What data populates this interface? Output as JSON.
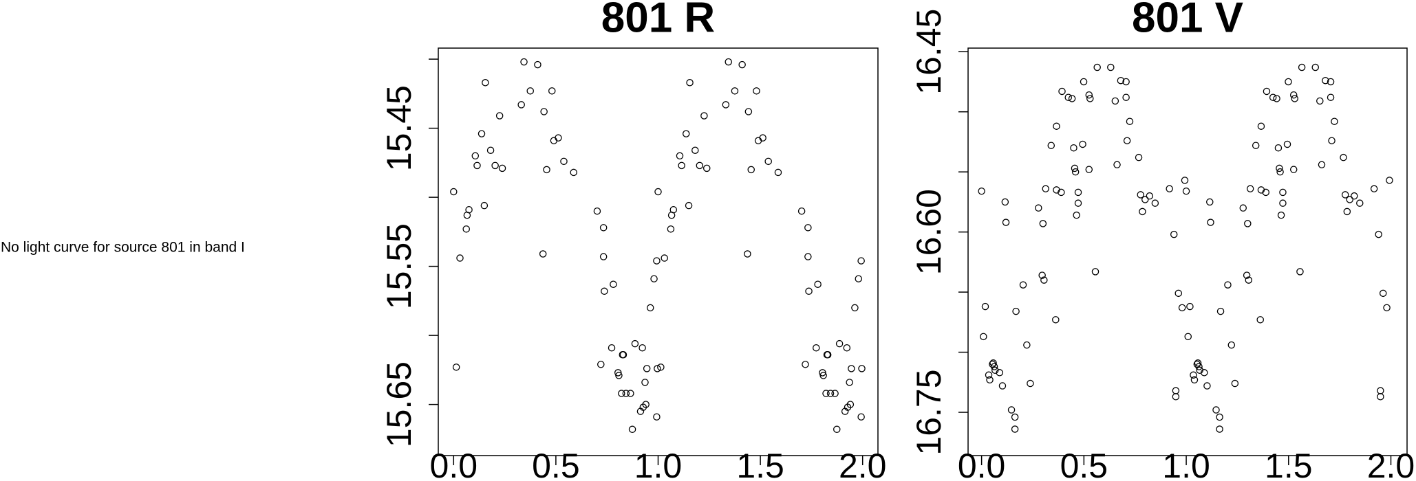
{
  "message": "No light curve for source 801 in band I",
  "chart_data": [
    {
      "type": "scatter",
      "title": "801 R",
      "color": "#000000",
      "xlim": [
        -0.075,
        2.075
      ],
      "ylim": [
        15.687,
        15.392
      ],
      "xticks": [
        {
          "value": 0,
          "label": "0.0"
        },
        0.5,
        {
          "value": 1,
          "label": "1.0"
        },
        1.5,
        {
          "value": 2,
          "label": "2.0"
        }
      ],
      "yticks": [
        15.45,
        15.55,
        15.65
      ],
      "yminor_ticks": [
        15.4,
        15.5,
        15.6
      ],
      "series": [
        {
          "name": "R",
          "x": [
            0.0,
            0.013,
            0.031,
            0.062,
            0.066,
            0.075,
            0.106,
            0.115,
            0.137,
            0.15,
            0.155,
            0.181,
            0.203,
            0.225,
            0.238,
            0.331,
            0.344,
            0.375,
            0.411,
            0.437,
            0.442,
            0.455,
            0.481,
            0.49,
            0.512,
            0.539,
            0.587,
            0.702,
            0.72,
            0.733,
            0.733,
            0.737,
            0.773,
            0.781,
            0.804,
            0.808,
            0.821,
            0.826,
            0.83,
            0.843,
            0.865,
            0.874,
            0.887,
            0.914,
            0.923,
            0.927,
            0.936,
            0.94,
            0.945,
            0.962,
            0.98,
            0.993,
            0.993,
            0.996,
            1.0,
            1.013,
            1.031,
            1.062,
            1.066,
            1.075,
            1.106,
            1.115,
            1.137,
            1.15,
            1.155,
            1.181,
            1.203,
            1.225,
            1.238,
            1.331,
            1.344,
            1.375,
            1.411,
            1.437,
            1.442,
            1.455,
            1.481,
            1.49,
            1.512,
            1.539,
            1.587,
            1.702,
            1.72,
            1.733,
            1.733,
            1.737,
            1.773,
            1.781,
            1.804,
            1.808,
            1.821,
            1.826,
            1.83,
            1.843,
            1.865,
            1.874,
            1.887,
            1.914,
            1.923,
            1.927,
            1.936,
            1.94,
            1.945,
            1.962,
            1.98,
            1.993,
            1.993,
            1.996
          ],
          "values": [
            15.496,
            15.623,
            15.544,
            15.523,
            15.513,
            15.509,
            15.47,
            15.477,
            15.454,
            15.506,
            15.417,
            15.466,
            15.477,
            15.441,
            15.479,
            15.433,
            15.402,
            15.423,
            15.404,
            15.541,
            15.438,
            15.48,
            15.423,
            15.459,
            15.457,
            15.474,
            15.482,
            15.51,
            15.621,
            15.522,
            15.543,
            15.568,
            15.609,
            15.563,
            15.627,
            15.629,
            15.642,
            15.614,
            15.614,
            15.642,
            15.642,
            15.668,
            15.606,
            15.655,
            15.609,
            15.652,
            15.634,
            15.65,
            15.624,
            15.58,
            15.559,
            15.546,
            15.659,
            15.624,
            15.496,
            15.623,
            15.544,
            15.523,
            15.513,
            15.509,
            15.47,
            15.477,
            15.454,
            15.506,
            15.417,
            15.466,
            15.477,
            15.441,
            15.479,
            15.433,
            15.402,
            15.423,
            15.404,
            15.541,
            15.438,
            15.48,
            15.423,
            15.459,
            15.457,
            15.474,
            15.482,
            15.51,
            15.621,
            15.522,
            15.543,
            15.568,
            15.609,
            15.563,
            15.627,
            15.629,
            15.642,
            15.614,
            15.614,
            15.642,
            15.642,
            15.668,
            15.606,
            15.655,
            15.609,
            15.652,
            15.634,
            15.65,
            15.624,
            15.58,
            15.559,
            15.546,
            15.659,
            15.624
          ]
        }
      ]
    },
    {
      "type": "scatter",
      "title": "801 V",
      "color": "#000000",
      "xlim": [
        -0.066,
        2.079
      ],
      "ylim": [
        16.786,
        16.447
      ],
      "xticks": [
        {
          "value": 0,
          "label": "0.0"
        },
        0.5,
        {
          "value": 1,
          "label": "1.0"
        },
        1.5,
        {
          "value": 2,
          "label": "2.0"
        }
      ],
      "yticks": [
        16.45,
        {
          "value": 16.6,
          "label": "16.60"
        },
        16.75
      ],
      "yminor_ticks": [
        16.5,
        16.55,
        16.65,
        16.7
      ],
      "series": [
        {
          "name": "V",
          "x": [
            0.0,
            0.009,
            0.018,
            0.035,
            0.04,
            0.053,
            0.057,
            0.062,
            0.066,
            0.088,
            0.102,
            0.115,
            0.119,
            0.146,
            0.163,
            0.163,
            0.168,
            0.203,
            0.221,
            0.238,
            0.278,
            0.296,
            0.3,
            0.305,
            0.313,
            0.34,
            0.362,
            0.366,
            0.366,
            0.389,
            0.393,
            0.424,
            0.442,
            0.45,
            0.455,
            0.459,
            0.464,
            0.472,
            0.472,
            0.494,
            0.499,
            0.525,
            0.525,
            0.53,
            0.556,
            0.565,
            0.631,
            0.653,
            0.662,
            0.68,
            0.706,
            0.706,
            0.711,
            0.724,
            0.768,
            0.777,
            0.786,
            0.799,
            0.821,
            0.848,
            0.918,
            0.94,
            0.949,
            0.949,
            0.962,
            0.98,
            0.993,
            1.0,
            1.009,
            1.018,
            1.035,
            1.04,
            1.053,
            1.057,
            1.062,
            1.066,
            1.088,
            1.102,
            1.115,
            1.119,
            1.146,
            1.163,
            1.163,
            1.168,
            1.203,
            1.221,
            1.238,
            1.278,
            1.296,
            1.3,
            1.305,
            1.313,
            1.34,
            1.362,
            1.366,
            1.366,
            1.389,
            1.393,
            1.424,
            1.442,
            1.45,
            1.455,
            1.459,
            1.464,
            1.472,
            1.472,
            1.494,
            1.499,
            1.525,
            1.525,
            1.53,
            1.556,
            1.565,
            1.631,
            1.653,
            1.662,
            1.68,
            1.706,
            1.706,
            1.711,
            1.724,
            1.768,
            1.777,
            1.786,
            1.799,
            1.821,
            1.848,
            1.918,
            1.94,
            1.949,
            1.949,
            1.962,
            1.98,
            1.993
          ],
          "values": [
            16.566,
            16.687,
            16.662,
            16.719,
            16.723,
            16.71,
            16.709,
            16.712,
            16.715,
            16.717,
            16.728,
            16.575,
            16.592,
            16.748,
            16.754,
            16.764,
            16.666,
            16.644,
            16.694,
            16.726,
            16.58,
            16.636,
            16.593,
            16.64,
            16.564,
            16.528,
            16.673,
            16.512,
            16.565,
            16.567,
            16.483,
            16.488,
            16.489,
            16.53,
            16.547,
            16.55,
            16.586,
            16.576,
            16.567,
            16.527,
            16.475,
            16.548,
            16.486,
            16.489,
            16.633,
            16.463,
            16.463,
            16.491,
            16.544,
            16.474,
            16.488,
            16.475,
            16.524,
            16.508,
            16.538,
            16.569,
            16.583,
            16.573,
            16.57,
            16.576,
            16.564,
            16.602,
            16.732,
            16.737,
            16.651,
            16.663,
            16.557,
            16.566,
            16.687,
            16.662,
            16.719,
            16.723,
            16.71,
            16.709,
            16.712,
            16.715,
            16.717,
            16.728,
            16.575,
            16.592,
            16.748,
            16.754,
            16.764,
            16.666,
            16.644,
            16.694,
            16.726,
            16.58,
            16.636,
            16.593,
            16.64,
            16.564,
            16.528,
            16.673,
            16.512,
            16.565,
            16.567,
            16.483,
            16.488,
            16.489,
            16.53,
            16.547,
            16.55,
            16.586,
            16.576,
            16.567,
            16.527,
            16.475,
            16.548,
            16.486,
            16.489,
            16.633,
            16.463,
            16.463,
            16.491,
            16.544,
            16.474,
            16.488,
            16.475,
            16.524,
            16.508,
            16.538,
            16.569,
            16.583,
            16.573,
            16.57,
            16.576,
            16.564,
            16.602,
            16.732,
            16.737,
            16.651,
            16.663,
            16.557
          ]
        }
      ]
    }
  ]
}
